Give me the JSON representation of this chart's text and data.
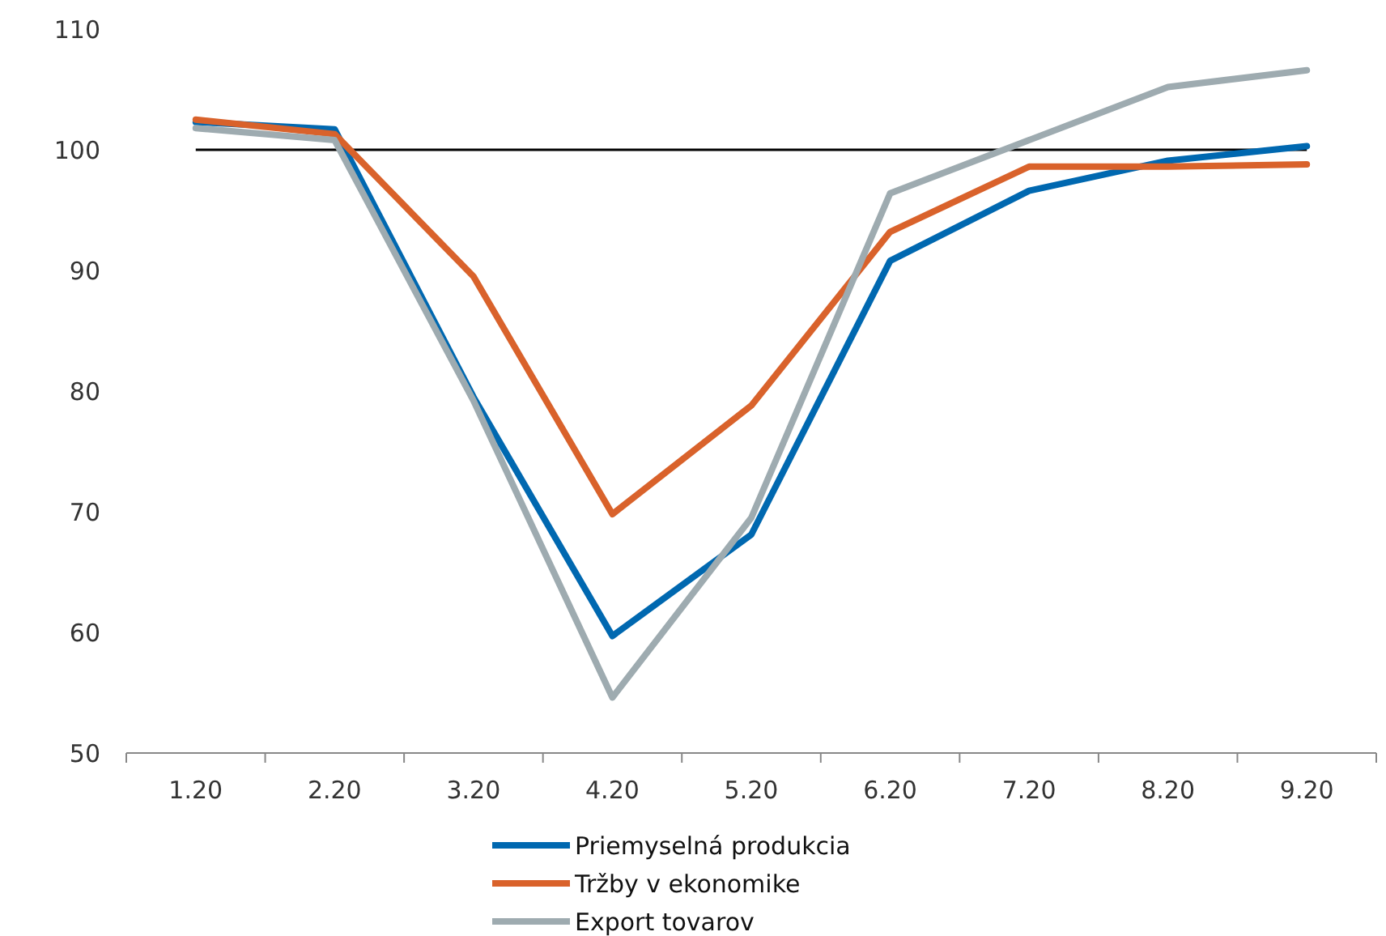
{
  "chart_data": {
    "type": "line",
    "categories": [
      "1.20",
      "2.20",
      "3.20",
      "4.20",
      "5.20",
      "6.20",
      "7.20",
      "8.20",
      "9.20"
    ],
    "series": [
      {
        "name": "Priemyselná produkcia",
        "color": "#0068b0",
        "values": [
          102.3,
          101.7,
          79.5,
          59.7,
          68.1,
          90.8,
          96.6,
          99.1,
          100.3
        ]
      },
      {
        "name": "Tržby v ekonomike",
        "color": "#d9622b",
        "values": [
          102.5,
          101.3,
          89.5,
          69.8,
          78.8,
          93.2,
          98.6,
          98.6,
          98.8
        ]
      },
      {
        "name": "Export tovarov",
        "color": "#9eabb0",
        "values": [
          101.8,
          100.8,
          79.2,
          54.6,
          69.5,
          96.4,
          100.8,
          105.2,
          106.6
        ]
      }
    ],
    "ylim": [
      50,
      110
    ],
    "yticks": [
      50,
      60,
      70,
      80,
      90,
      100,
      110
    ],
    "ref_lines": [
      {
        "axis": "y",
        "value": 100,
        "color": "#000000"
      }
    ],
    "legend": "bottom",
    "grid": false,
    "marker": "none",
    "line_style": "solid"
  }
}
